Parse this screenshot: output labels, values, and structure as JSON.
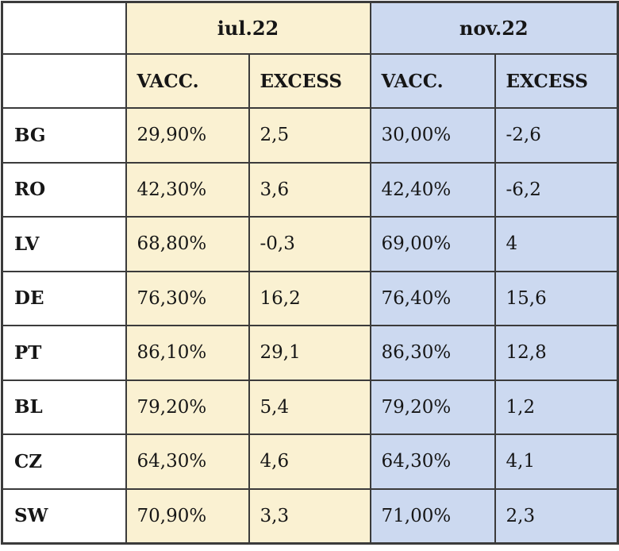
{
  "chart_data": {
    "type": "table",
    "title": "",
    "column_groups": [
      {
        "label": "iul.22",
        "span": 2
      },
      {
        "label": "nov.22",
        "span": 2
      }
    ],
    "columns": [
      "VACC.",
      "EXCESS",
      "VACC.",
      "EXCESS"
    ],
    "rows": [
      {
        "country": "BG",
        "values": [
          "29,90%",
          "2,5",
          "30,00%",
          "-2,6"
        ]
      },
      {
        "country": "RO",
        "values": [
          "42,30%",
          "3,6",
          "42,40%",
          "-6,2"
        ]
      },
      {
        "country": "LV",
        "values": [
          "68,80%",
          "-0,3",
          "69,00%",
          "4"
        ]
      },
      {
        "country": "DE",
        "values": [
          "76,30%",
          "16,2",
          "76,40%",
          "15,6"
        ]
      },
      {
        "country": "PT",
        "values": [
          "86,10%",
          "29,1",
          "86,30%",
          "12,8"
        ]
      },
      {
        "country": "BL",
        "values": [
          "79,20%",
          "5,4",
          "79,20%",
          "1,2"
        ]
      },
      {
        "country": "CZ",
        "values": [
          "64,30%",
          "4,6",
          "64,30%",
          "4,1"
        ]
      },
      {
        "country": "SW",
        "values": [
          "70,90%",
          "3,3",
          "71,00%",
          "2,3"
        ]
      }
    ],
    "layout": {
      "legend": "none",
      "grid": "full-borders"
    }
  },
  "colors": {
    "iul_section_bg": "#faf1d2",
    "nov_section_bg": "#ccd9f0",
    "border": "#3b3b3b",
    "text": "#161616",
    "row_header_bg": "#ffffff"
  }
}
